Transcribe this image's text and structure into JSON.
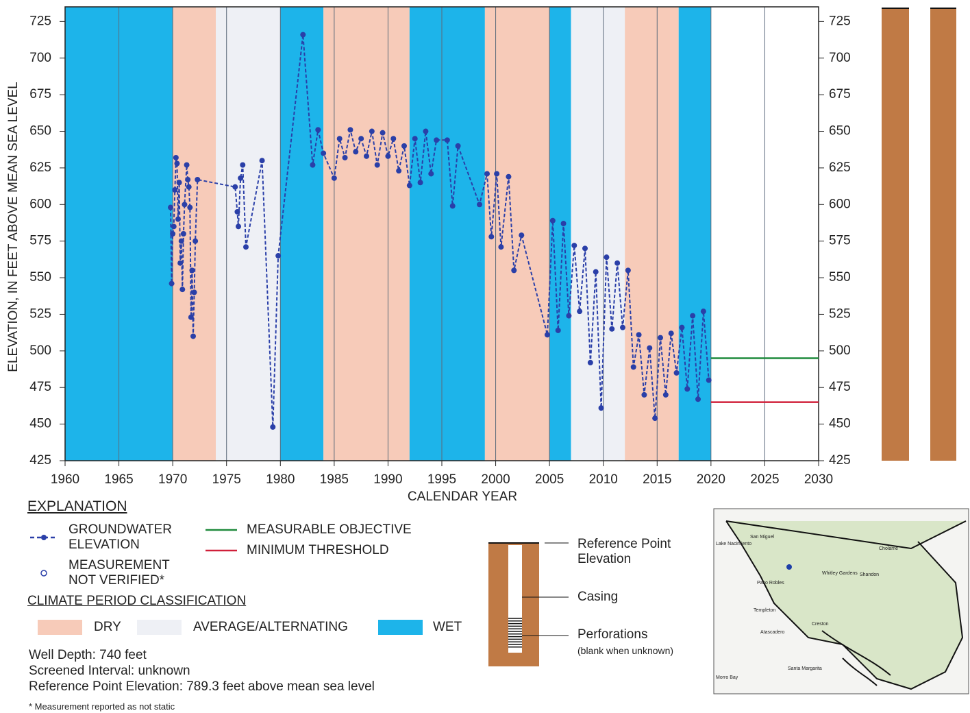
{
  "chart_data": {
    "type": "line",
    "x_label": "CALENDAR YEAR",
    "y_label": "ELEVATION, IN FEET ABOVE MEAN SEA LEVEL",
    "xlim": [
      1960,
      2030
    ],
    "xticks": [
      1960,
      1965,
      1970,
      1975,
      1980,
      1985,
      1990,
      1995,
      2000,
      2005,
      2010,
      2015,
      2020,
      2025,
      2030
    ],
    "ylim": [
      425,
      735
    ],
    "yticks": [
      425,
      450,
      475,
      500,
      525,
      550,
      575,
      600,
      625,
      650,
      675,
      700,
      725
    ],
    "grid": true,
    "climate_classes": [
      {
        "label": "DRY",
        "color": "#f7cbb9"
      },
      {
        "label": "AVERAGE/ALTERNATING",
        "color": "#eef0f5"
      },
      {
        "label": "WET",
        "color": "#1db4ea"
      }
    ],
    "climate_periods": [
      {
        "start": 1960,
        "end": 1970,
        "class": "WET"
      },
      {
        "start": 1970,
        "end": 1974,
        "class": "DRY"
      },
      {
        "start": 1974,
        "end": 1980,
        "class": "AVERAGE/ALTERNATING"
      },
      {
        "start": 1980,
        "end": 1984,
        "class": "WET"
      },
      {
        "start": 1984,
        "end": 1992,
        "class": "DRY"
      },
      {
        "start": 1992,
        "end": 1999,
        "class": "WET"
      },
      {
        "start": 1999,
        "end": 2005,
        "class": "DRY"
      },
      {
        "start": 2005,
        "end": 2007,
        "class": "WET"
      },
      {
        "start": 2007,
        "end": 2012,
        "class": "AVERAGE/ALTERNATING"
      },
      {
        "start": 2012,
        "end": 2017,
        "class": "DRY"
      },
      {
        "start": 2017,
        "end": 2020,
        "class": "WET"
      }
    ],
    "series": [
      {
        "name": "GROUNDWATER ELEVATION",
        "color": "#2a3fa8",
        "x": [
          1969.8,
          1969.9,
          1970.0,
          1970.1,
          1970.2,
          1970.3,
          1970.4,
          1970.5,
          1970.6,
          1970.7,
          1970.8,
          1970.9,
          1971.0,
          1971.1,
          1971.3,
          1971.4,
          1971.5,
          1971.6,
          1971.7,
          1971.8,
          1971.9,
          1972.0,
          1972.1,
          1972.3,
          1975.8,
          1976.0,
          1976.1,
          1976.3,
          1976.5,
          1976.8,
          1978.3,
          1979.3,
          1979.8,
          1982.1,
          1983.0,
          1983.5,
          1984.0,
          1985.0,
          1985.5,
          1986.0,
          1986.5,
          1987.0,
          1987.5,
          1988.0,
          1988.5,
          1989.0,
          1989.5,
          1990.0,
          1990.5,
          1991.0,
          1991.5,
          1992.0,
          1992.5,
          1993.0,
          1993.5,
          1994.0,
          1994.5,
          1995.5,
          1996.0,
          1996.5,
          1998.5,
          1999.2,
          1999.6,
          2000.1,
          2000.5,
          2001.2,
          2001.7,
          2002.4,
          2004.8,
          2005.3,
          2005.8,
          2006.3,
          2006.8,
          2007.3,
          2007.8,
          2008.3,
          2008.8,
          2009.3,
          2009.8,
          2010.3,
          2010.8,
          2011.3,
          2011.8,
          2012.3,
          2012.8,
          2013.3,
          2013.8,
          2014.3,
          2014.8,
          2015.3,
          2015.8,
          2016.3,
          2016.8,
          2017.3,
          2017.8,
          2018.3,
          2018.8,
          2019.3,
          2019.8
        ],
        "values": [
          598,
          546,
          580,
          585,
          610,
          632,
          628,
          590,
          615,
          560,
          575,
          542,
          580,
          600,
          627,
          617,
          612,
          598,
          523,
          555,
          510,
          540,
          575,
          617,
          612,
          595,
          585,
          618,
          627,
          571,
          630,
          448,
          565,
          716,
          627,
          651,
          635,
          618,
          645,
          632,
          651,
          636,
          645,
          633,
          650,
          627,
          649,
          633,
          645,
          623,
          640,
          613,
          645,
          615,
          650,
          621,
          644,
          644,
          599,
          640,
          600,
          621,
          578,
          621,
          571,
          619,
          555,
          579,
          511,
          589,
          514,
          587,
          524,
          572,
          527,
          570,
          492,
          554,
          461,
          564,
          515,
          560,
          516,
          555,
          489,
          511,
          470,
          502,
          454,
          509,
          470,
          512,
          485,
          516,
          474,
          524,
          467,
          527,
          480
        ]
      }
    ],
    "reference_lines": [
      {
        "name": "MEASURABLE OBJECTIVE",
        "value": 495,
        "color": "#1e8a3c",
        "x": [
          2020,
          2030
        ]
      },
      {
        "name": "MINIMUM THRESHOLD",
        "value": 465,
        "color": "#d0203a",
        "x": [
          2020,
          2030
        ]
      }
    ]
  },
  "explanation": {
    "title": "EXPLANATION",
    "not_verified": "MEASUREMENT NOT VERIFIED*",
    "climate_title": "CLIMATE PERIOD CLASSIFICATION",
    "well_info": [
      "Well Depth: 740 feet",
      "Screened Interval: unknown",
      "Reference Point Elevation: 789.3 feet above mean sea level"
    ],
    "footnote": "* Measurement reported as not static"
  },
  "well_diagram": {
    "reference": "Reference Point Elevation",
    "casing": "Casing",
    "perforations": "Perforations",
    "perforations_note": "(blank when unknown)"
  },
  "map": {
    "labels": [
      "Lake Nacimiento",
      "San Miguel",
      "Paso Robles",
      "Templeton",
      "Atascadero",
      "Creston",
      "Whitley Gardens",
      "Shandon",
      "Cholame",
      "Santa Margarita",
      "Morro Bay"
    ]
  }
}
